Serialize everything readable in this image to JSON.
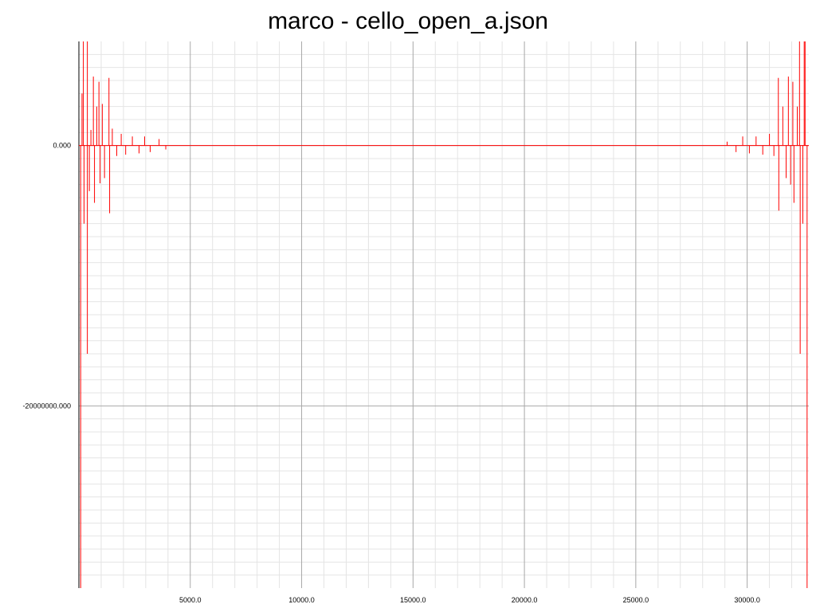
{
  "chart_data": {
    "type": "line",
    "title": "marco - cello_open_a.json",
    "xlabel": "",
    "ylabel": "",
    "xlim": [
      0,
      32768
    ],
    "ylim": [
      -34000000,
      8000000
    ],
    "grid": true,
    "x_ticks": [
      5000,
      10000,
      15000,
      20000,
      25000,
      30000
    ],
    "x_tick_labels": [
      "5000.0",
      "10000.0",
      "15000.0",
      "20000.0",
      "25000.0",
      "30000.0"
    ],
    "y_ticks": [
      0,
      -20000000
    ],
    "y_tick_labels": [
      "0.000",
      "-20000000.000"
    ],
    "series": [
      {
        "color": "#ff0000",
        "spikes": [
          {
            "x": 80,
            "y": -34000000
          },
          {
            "x": 140,
            "y": 4000000
          },
          {
            "x": 230,
            "y": -6000000
          },
          {
            "x": 380,
            "y": 16000000
          },
          {
            "x": 380,
            "y": -16000000
          },
          {
            "x": 470,
            "y": -3500000
          },
          {
            "x": 540,
            "y": 1200000
          },
          {
            "x": 650,
            "y": 5300000
          },
          {
            "x": 700,
            "y": -4400000
          },
          {
            "x": 800,
            "y": 3000000
          },
          {
            "x": 900,
            "y": 4900000
          },
          {
            "x": 950,
            "y": -2900000
          },
          {
            "x": 1050,
            "y": 3200000
          },
          {
            "x": 1150,
            "y": -2500000
          },
          {
            "x": 1350,
            "y": 5200000
          },
          {
            "x": 1380,
            "y": -5200000
          },
          {
            "x": 1500,
            "y": 1300000
          },
          {
            "x": 1700,
            "y": -800000
          },
          {
            "x": 1900,
            "y": 900000
          },
          {
            "x": 2100,
            "y": -700000
          },
          {
            "x": 2400,
            "y": 700000
          },
          {
            "x": 2700,
            "y": -600000
          },
          {
            "x": 2950,
            "y": 700000
          },
          {
            "x": 3200,
            "y": -500000
          },
          {
            "x": 3600,
            "y": 500000
          },
          {
            "x": 3900,
            "y": -300000
          },
          {
            "x": 29100,
            "y": 300000
          },
          {
            "x": 29500,
            "y": -500000
          },
          {
            "x": 29800,
            "y": 700000
          },
          {
            "x": 30100,
            "y": -600000
          },
          {
            "x": 30400,
            "y": 700000
          },
          {
            "x": 30700,
            "y": -700000
          },
          {
            "x": 31000,
            "y": 900000
          },
          {
            "x": 31200,
            "y": -800000
          },
          {
            "x": 31400,
            "y": 5200000
          },
          {
            "x": 31420,
            "y": -5000000
          },
          {
            "x": 31600,
            "y": 3000000
          },
          {
            "x": 31750,
            "y": -2500000
          },
          {
            "x": 31850,
            "y": 5300000
          },
          {
            "x": 31950,
            "y": -3000000
          },
          {
            "x": 32050,
            "y": 4900000
          },
          {
            "x": 32100,
            "y": -4400000
          },
          {
            "x": 32250,
            "y": 3000000
          },
          {
            "x": 32350,
            "y": 16000000
          },
          {
            "x": 32380,
            "y": -16000000
          },
          {
            "x": 32500,
            "y": -6000000
          },
          {
            "x": 32600,
            "y": 8500000
          },
          {
            "x": 32690,
            "y": -34000000
          }
        ]
      }
    ]
  }
}
